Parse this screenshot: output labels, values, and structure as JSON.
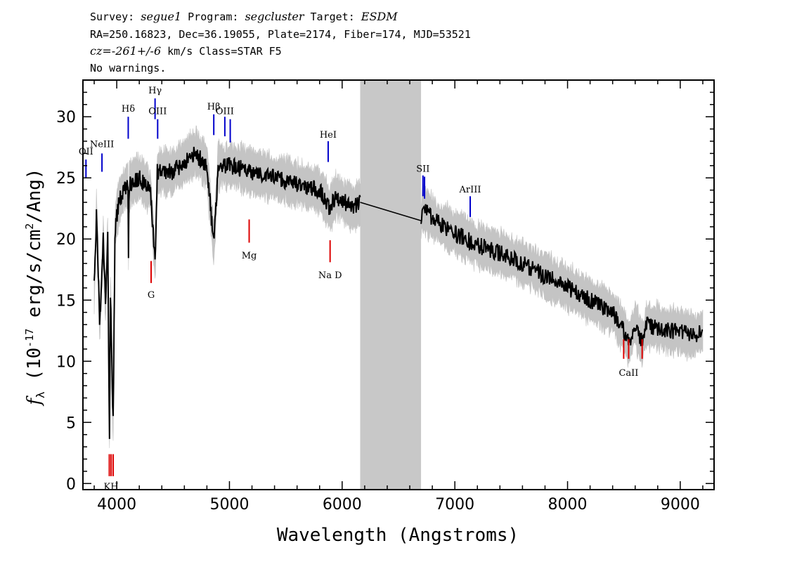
{
  "header": {
    "line1": {
      "survey_label": "Survey:",
      "survey": "segue1",
      "program_label": "Program:",
      "program": "segcluster",
      "target_label": "Target:",
      "target": "ESDM"
    },
    "line2": "RA=250.16823, Dec=36.19055, Plate=2174, Fiber=174, MJD=53521",
    "line3": {
      "cz": "cz=-261+/-6",
      "rest": "km/s Class=STAR F5"
    },
    "line4": "No warnings."
  },
  "chart_data": {
    "type": "line",
    "xlabel": "Wavelength (Angstroms)",
    "ylabel": "f_λ (10^-17 erg/s/cm^2/Ang)",
    "ylabel_parts": {
      "f": "f",
      "sub": "λ",
      "pre": "(10",
      "exp": "-17",
      "mid": " erg/s/cm",
      "exp2": "2",
      "post": "/Ang)"
    },
    "xlim": [
      3700,
      9300
    ],
    "ylim": [
      -0.5,
      33
    ],
    "xticks": [
      4000,
      5000,
      6000,
      7000,
      8000,
      9000
    ],
    "yticks": [
      0,
      5,
      10,
      15,
      20,
      25,
      30
    ],
    "masked_region": [
      6160,
      6700
    ],
    "colors": {
      "flux": "#000000",
      "noise": "#c4c4c4",
      "emission": "#0000cc",
      "absorption": "#dd0000",
      "mask": "#c8c8c8"
    },
    "spectrum_anchors": [
      [
        3800,
        16
      ],
      [
        3820,
        22
      ],
      [
        3850,
        13
      ],
      [
        3880,
        20
      ],
      [
        3900,
        15
      ],
      [
        3920,
        20
      ],
      [
        3935,
        3
      ],
      [
        3945,
        16
      ],
      [
        3960,
        8
      ],
      [
        3968,
        5
      ],
      [
        3985,
        21
      ],
      [
        4020,
        23
      ],
      [
        4060,
        24
      ],
      [
        4100,
        24.5
      ],
      [
        4102,
        17
      ],
      [
        4110,
        24.5
      ],
      [
        4200,
        25
      ],
      [
        4300,
        24
      ],
      [
        4340,
        18
      ],
      [
        4360,
        25.5
      ],
      [
        4500,
        25.5
      ],
      [
        4600,
        26.3
      ],
      [
        4700,
        27
      ],
      [
        4750,
        26.5
      ],
      [
        4800,
        26
      ],
      [
        4861,
        19.5
      ],
      [
        4900,
        26
      ],
      [
        5000,
        26
      ],
      [
        5100,
        25.8
      ],
      [
        5200,
        25.5
      ],
      [
        5400,
        25
      ],
      [
        5600,
        24.5
      ],
      [
        5800,
        24
      ],
      [
        5890,
        22.5
      ],
      [
        5950,
        23.5
      ],
      [
        6100,
        22.5
      ],
      [
        6160,
        23
      ],
      [
        6700,
        21.5
      ],
      [
        6710,
        22.5
      ],
      [
        6900,
        21
      ],
      [
        7200,
        19.5
      ],
      [
        7500,
        18.5
      ],
      [
        7800,
        17
      ],
      [
        8100,
        15.5
      ],
      [
        8400,
        14
      ],
      [
        8500,
        12.5
      ],
      [
        8542,
        11.5
      ],
      [
        8600,
        13
      ],
      [
        8662,
        11.5
      ],
      [
        8700,
        13
      ],
      [
        8900,
        12.5
      ],
      [
        9000,
        12.5
      ],
      [
        9100,
        12
      ],
      [
        9200,
        12.5
      ]
    ],
    "spectral_lines": [
      {
        "name": "OII",
        "x": 3727,
        "kind": "emission",
        "y1": 25,
        "y2": 26.5,
        "label_y": 26.9
      },
      {
        "name": "NeIII",
        "x": 3869,
        "kind": "emission",
        "y1": 25.5,
        "y2": 27,
        "label_y": 27.5
      },
      {
        "name": "Hδ",
        "x": 4102,
        "kind": "emission",
        "y1": 28.2,
        "y2": 30,
        "label_y": 30.4
      },
      {
        "name": "Hγ",
        "x": 4340,
        "kind": "emission",
        "y1": 29.8,
        "y2": 31.5,
        "label_y": 31.9
      },
      {
        "name": "OIII",
        "x": 4363,
        "kind": "emission",
        "y1": 28.2,
        "y2": 29.8,
        "label_y": 30.2
      },
      {
        "name": "Hβ",
        "x": 4861,
        "kind": "emission",
        "y1": 28.5,
        "y2": 30.2,
        "label_y": 30.6
      },
      {
        "name": "OIII",
        "x": 4959,
        "kind": "emission",
        "y1": 28.4,
        "y2": 30,
        "label_y": 30.2
      },
      {
        "name": "",
        "x": 5007,
        "kind": "emission",
        "y1": 27.9,
        "y2": 29.8
      },
      {
        "name": "HeI",
        "x": 5876,
        "kind": "emission",
        "y1": 26.3,
        "y2": 28,
        "label_y": 28.3
      },
      {
        "name": "SII",
        "x": 6717,
        "kind": "emission",
        "y1": 23.5,
        "y2": 25.2,
        "label_y": 25.5
      },
      {
        "name": "",
        "x": 6731,
        "kind": "emission",
        "y1": 23.3,
        "y2": 25.1
      },
      {
        "name": "ArIII",
        "x": 7136,
        "kind": "emission",
        "y1": 21.8,
        "y2": 23.5,
        "label_y": 23.8
      },
      {
        "name": "KH",
        "x": 3950,
        "kind": "absorption",
        "y1": 0.6,
        "y2": 2.4,
        "label_y": -0.5
      },
      {
        "name": "",
        "x": 3934,
        "kind": "absorption",
        "y1": 0.6,
        "y2": 2.4
      },
      {
        "name": "",
        "x": 3968,
        "kind": "absorption",
        "y1": 0.6,
        "y2": 2.4
      },
      {
        "name": "G",
        "x": 4305,
        "kind": "absorption",
        "y1": 16.4,
        "y2": 18.2,
        "label_y": 15.2
      },
      {
        "name": "Mg",
        "x": 5175,
        "kind": "absorption",
        "y1": 19.7,
        "y2": 21.6,
        "label_y": 18.4
      },
      {
        "name": "Na D",
        "x": 5893,
        "kind": "absorption",
        "y1": 18.1,
        "y2": 19.9,
        "label_y": 16.8
      },
      {
        "name": "CaII",
        "x": 8542,
        "kind": "absorption",
        "y1": 10.2,
        "y2": 11.8,
        "label_y": 8.8
      },
      {
        "name": "",
        "x": 8498,
        "kind": "absorption",
        "y1": 10.2,
        "y2": 11.8
      },
      {
        "name": "",
        "x": 8662,
        "kind": "absorption",
        "y1": 10.2,
        "y2": 11.8
      }
    ]
  }
}
